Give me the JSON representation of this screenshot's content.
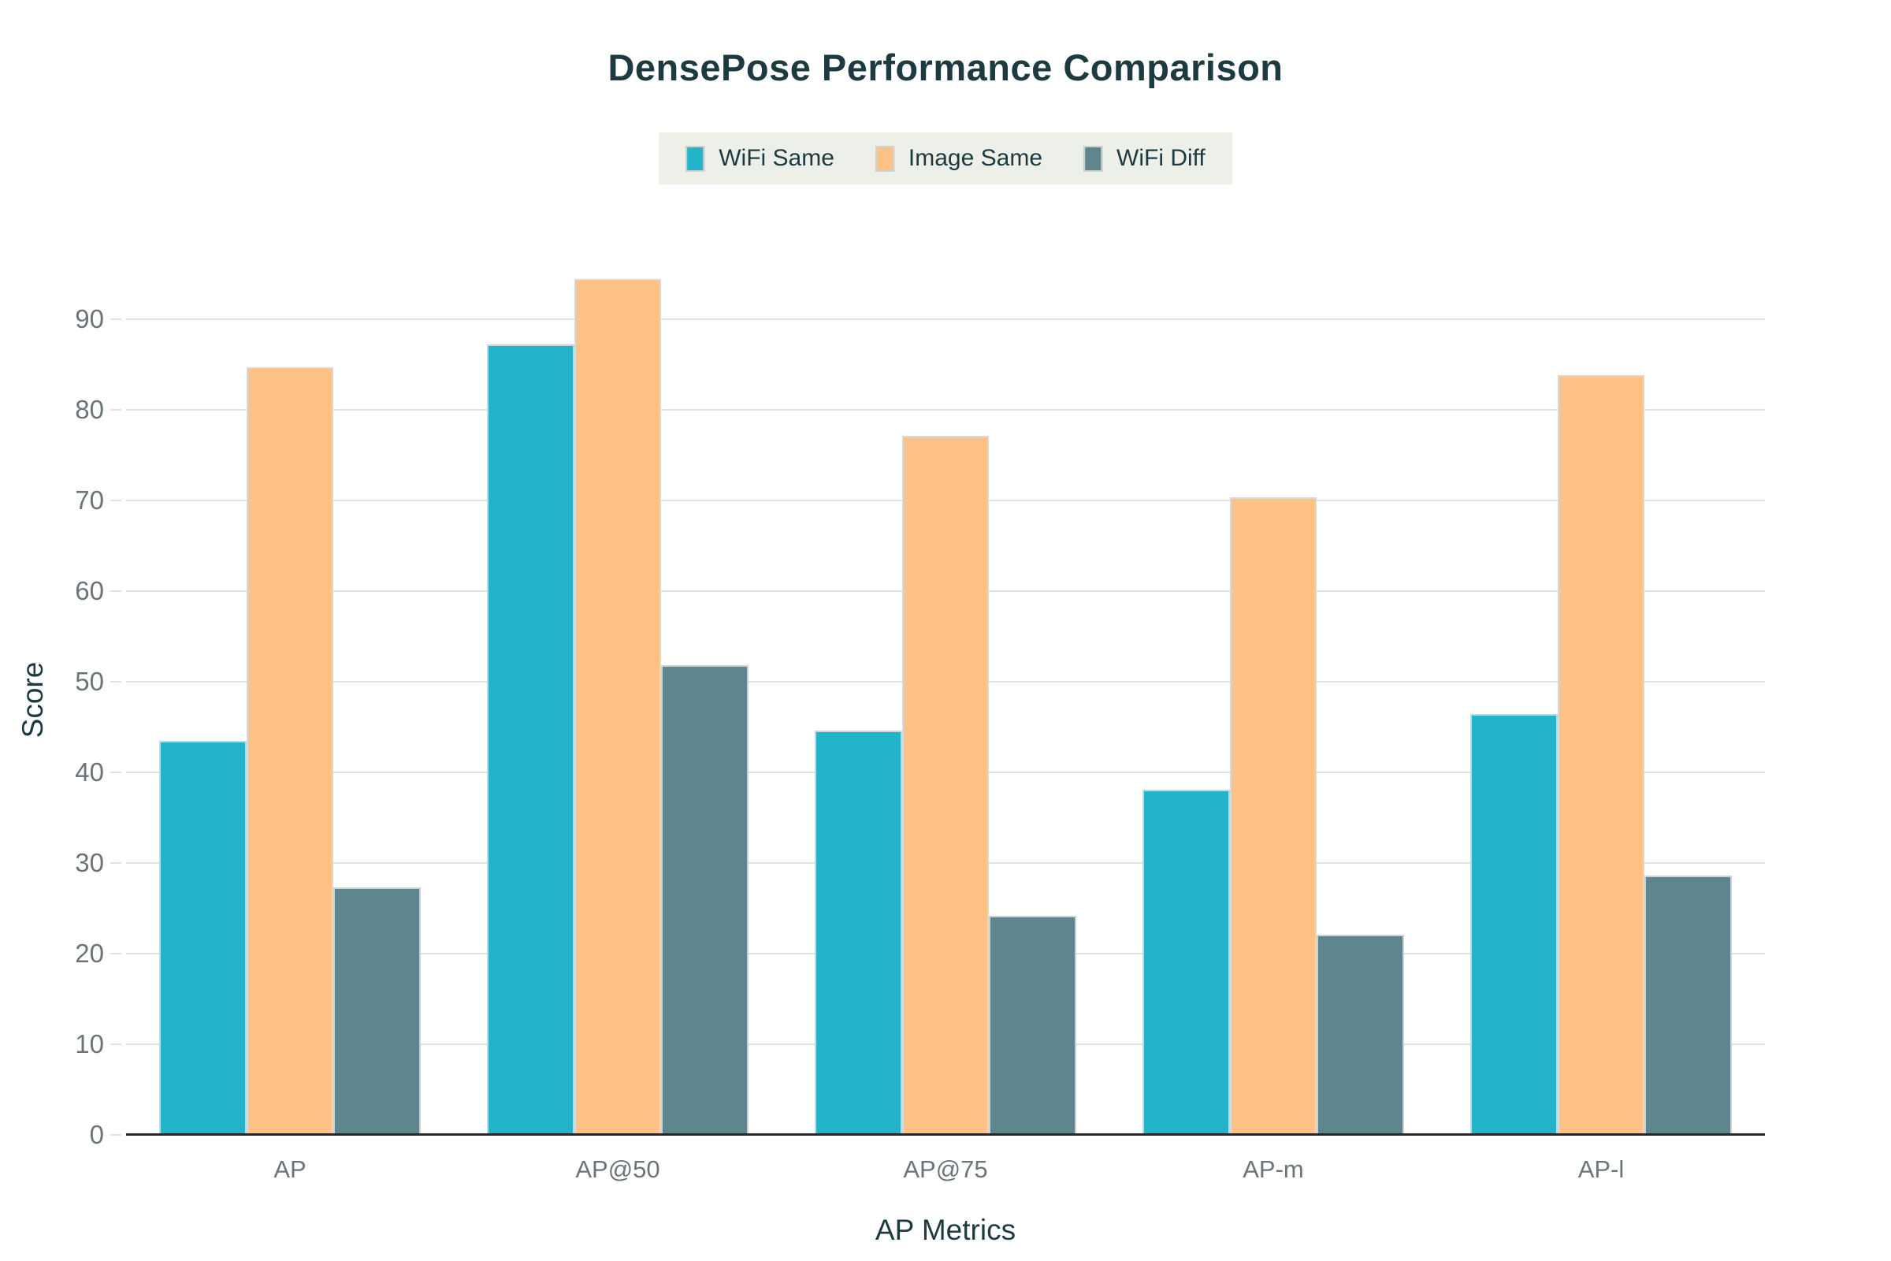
{
  "title": "DensePose Performance Comparison",
  "legend": {
    "items": [
      {
        "label": "WiFi Same",
        "color": "#22b5c9"
      },
      {
        "label": "Image Same",
        "color": "#fec287"
      },
      {
        "label": "WiFi Diff",
        "color": "#5d868f"
      }
    ]
  },
  "chart_data": {
    "type": "bar",
    "title": "DensePose Performance Comparison",
    "categories": [
      "AP",
      "AP@50",
      "AP@75",
      "AP-m",
      "AP-l"
    ],
    "series": [
      {
        "name": "WiFi Same",
        "color": "#22b5c9",
        "values": [
          43.5,
          87.2,
          44.6,
          38.1,
          46.4
        ]
      },
      {
        "name": "Image Same",
        "color": "#fec287",
        "values": [
          84.7,
          94.4,
          77.1,
          70.3,
          83.8
        ]
      },
      {
        "name": "WiFi Diff",
        "color": "#5d868f",
        "values": [
          27.3,
          51.8,
          24.2,
          22.1,
          28.6
        ]
      }
    ],
    "xlabel": "AP Metrics",
    "ylabel": "Score",
    "ylim": [
      0,
      95
    ],
    "yticks": [
      0,
      10,
      20,
      30,
      40,
      50,
      60,
      70,
      80,
      90
    ],
    "grid": true,
    "legend_position": "top-center"
  },
  "colors": {
    "title_text": "#1d3a40",
    "axis_title_text": "#1d3a40",
    "tick_text": "#6b7478",
    "legend_text": "#1d3a40",
    "legend_background": "#edefe9",
    "gridline": "#e1e1e1",
    "baseline": "#262626",
    "background": "#ffffff"
  }
}
